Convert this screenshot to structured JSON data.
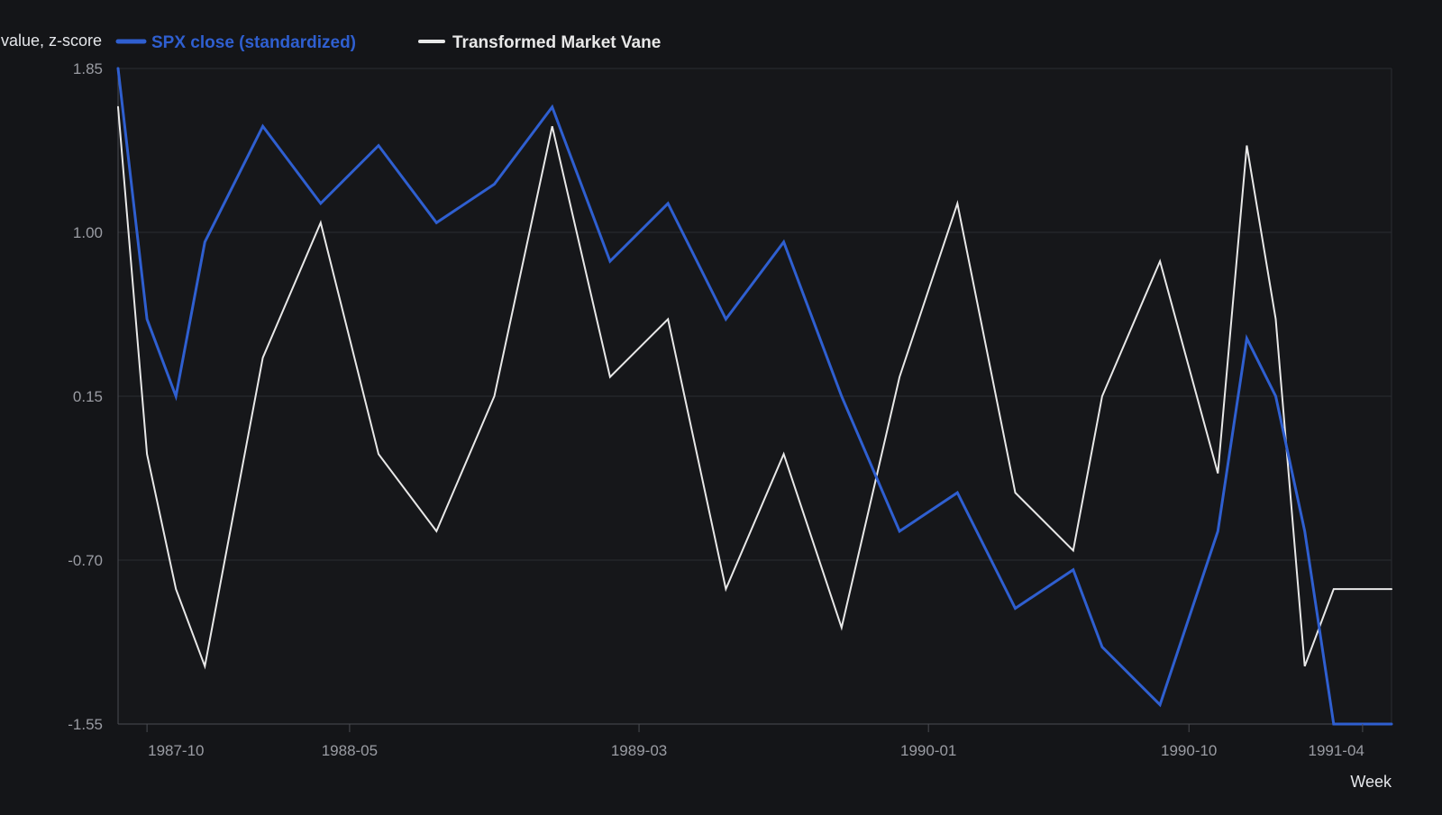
{
  "chart_data": {
    "type": "line",
    "title": "",
    "ylabel": "value, z-score",
    "xlabel": "Week",
    "ylim": [
      -1.55,
      1.85
    ],
    "yticks": [
      "1.85",
      "1.00",
      "0.15",
      "-0.70",
      "-1.55"
    ],
    "xlim": [
      "1987-09",
      "1991-05"
    ],
    "xticks": [
      "1987-10",
      "1988-05",
      "1989-03",
      "1990-01",
      "1990-10",
      "1991-04"
    ],
    "x": [
      "1987-09",
      "1987-10",
      "1987-11",
      "1987-12",
      "1988-02",
      "1988-04",
      "1988-06",
      "1988-08",
      "1988-10",
      "1988-12",
      "1989-02",
      "1989-04",
      "1989-06",
      "1989-08",
      "1989-10",
      "1989-12",
      "1990-02",
      "1990-04",
      "1990-06",
      "1990-07",
      "1990-09",
      "1990-11",
      "1990-12",
      "1991-01",
      "1991-02",
      "1991-03",
      "1991-05"
    ],
    "series": [
      {
        "name": "SPX close (standardized)",
        "color": "#2f5fd0",
        "values": [
          1.85,
          0.55,
          0.15,
          0.95,
          1.55,
          1.15,
          1.45,
          1.05,
          1.25,
          1.65,
          0.85,
          1.15,
          0.55,
          0.95,
          0.15,
          -0.55,
          -0.35,
          -0.95,
          -0.75,
          -1.15,
          -1.45,
          -0.55,
          0.45,
          0.15,
          -0.55,
          -1.55,
          -1.55
        ],
        "line_width": 3
      },
      {
        "name": "Transformed Market Vane",
        "color": "#e8e8e8",
        "values": [
          1.65,
          -0.15,
          -0.85,
          -1.25,
          0.35,
          1.05,
          -0.15,
          -0.55,
          0.15,
          1.55,
          0.25,
          0.55,
          -0.85,
          -0.15,
          -1.05,
          0.25,
          1.15,
          -0.35,
          -0.65,
          0.15,
          0.85,
          -0.25,
          1.45,
          0.55,
          -1.25,
          -0.85,
          -0.85
        ],
        "line_width": 2
      }
    ],
    "grid": "horizontal",
    "legend_position": "top-left"
  },
  "colors": {
    "background": "#141518",
    "plot_background": "#16171a",
    "grid": "#2a2c31",
    "axis": "#4a4c52"
  }
}
